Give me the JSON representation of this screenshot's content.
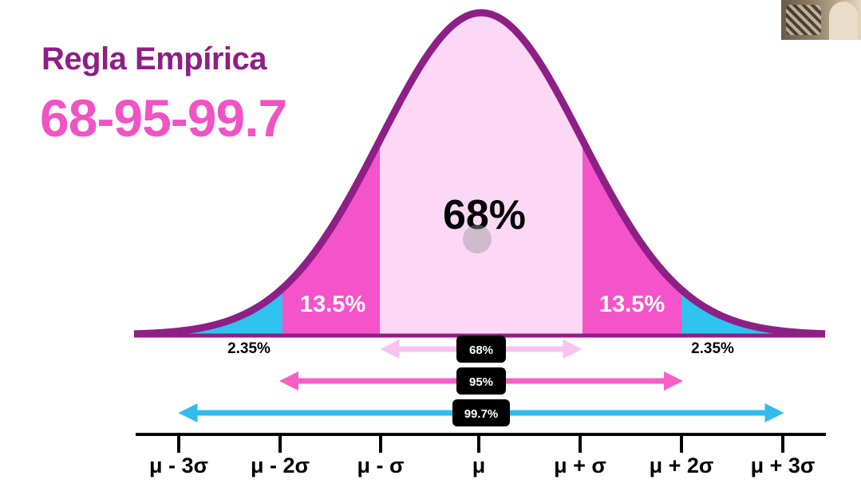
{
  "header": {
    "title": "Regla Empírica",
    "subtitle": "68-95-99.7"
  },
  "diagram": {
    "center_percent": "68%",
    "left_band_percent": "13.5%",
    "right_band_percent": "13.5%",
    "left_tail_percent": "2.35%",
    "right_tail_percent": "2.35%",
    "arrows": [
      {
        "label": "68%",
        "sigma": 1,
        "color": "#f9c2ef"
      },
      {
        "label": "95%",
        "sigma": 2,
        "color": "#f55fc6"
      },
      {
        "label": "99.7%",
        "sigma": 3,
        "color": "#33bbee"
      }
    ],
    "axis_ticks": [
      "μ - 3σ",
      "μ - 2σ",
      "μ - σ",
      "μ",
      "μ + σ",
      "μ + 2σ",
      "μ + 3σ"
    ]
  },
  "colors": {
    "curve": "#8e1f86",
    "center_fill": "#fcd8f6",
    "band_fill": "#f553c9",
    "tail_fill": "#2fc3f0",
    "title": "#8e1f86",
    "subtitle": "#f053c4"
  },
  "webcam": {
    "icon": "webcam-thumbnail"
  }
}
